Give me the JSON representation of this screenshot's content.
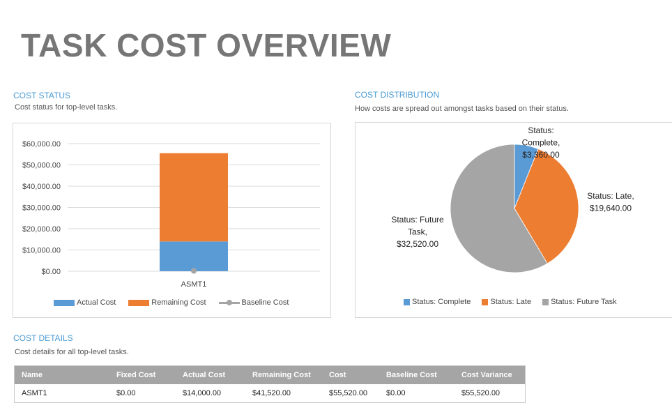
{
  "page": {
    "title": "TASK COST OVERVIEW"
  },
  "cost_status": {
    "title": "COST STATUS",
    "subtitle": "Cost status for top-level tasks."
  },
  "cost_distribution": {
    "title": "COST DISTRIBUTION",
    "subtitle": "How costs are spread out amongst tasks based on their status."
  },
  "cost_details": {
    "title": "COST DETAILS",
    "subtitle": "Cost details for all top-level tasks.",
    "headers": [
      "Name",
      "Fixed Cost",
      "Actual Cost",
      "Remaining Cost",
      "Cost",
      "Baseline Cost",
      "Cost Variance"
    ],
    "rows": [
      [
        "ASMT1",
        "$0.00",
        "$14,000.00",
        "$41,520.00",
        "$55,520.00",
        "$0.00",
        "$55,520.00"
      ]
    ]
  },
  "colors": {
    "blue": "#5b9bd5",
    "orange": "#ed7d31",
    "gray": "#a5a5a5",
    "accent_title": "#4a9bd3"
  },
  "chart_data": [
    {
      "type": "bar",
      "stacked": true,
      "categories": [
        "ASMT1"
      ],
      "series": [
        {
          "name": "Actual Cost",
          "values": [
            14000
          ],
          "color": "#5b9bd5"
        },
        {
          "name": "Remaining Cost",
          "values": [
            41520
          ],
          "color": "#ed7d31"
        },
        {
          "name": "Baseline Cost",
          "values": [
            0
          ],
          "color": "#a5a5a5",
          "kind": "line-marker"
        }
      ],
      "ylim": [
        0,
        60000
      ],
      "yticks": [
        0,
        10000,
        20000,
        30000,
        40000,
        50000,
        60000
      ],
      "ytick_labels": [
        "$0.00",
        "$10,000.00",
        "$20,000.00",
        "$30,000.00",
        "$40,000.00",
        "$50,000.00",
        "$60,000.00"
      ],
      "legend": [
        "Actual Cost",
        "Remaining Cost",
        "Baseline Cost"
      ],
      "legend_position": "bottom",
      "grid": true
    },
    {
      "type": "pie",
      "slices": [
        {
          "name": "Status: Complete",
          "value": 3360,
          "color": "#5b9bd5",
          "label_lines": [
            "Status:",
            "Complete,",
            "$3,360.00"
          ]
        },
        {
          "name": "Status: Late",
          "value": 19640,
          "color": "#ed7d31",
          "label_lines": [
            "Status: Late,",
            "$19,640.00"
          ]
        },
        {
          "name": "Status: Future Task",
          "value": 32520,
          "color": "#a5a5a5",
          "label_lines": [
            "Status: Future",
            "Task,",
            "$32,520.00"
          ]
        }
      ],
      "legend": [
        "Status: Complete",
        "Status: Late",
        "Status: Future Task"
      ],
      "legend_position": "bottom"
    }
  ]
}
